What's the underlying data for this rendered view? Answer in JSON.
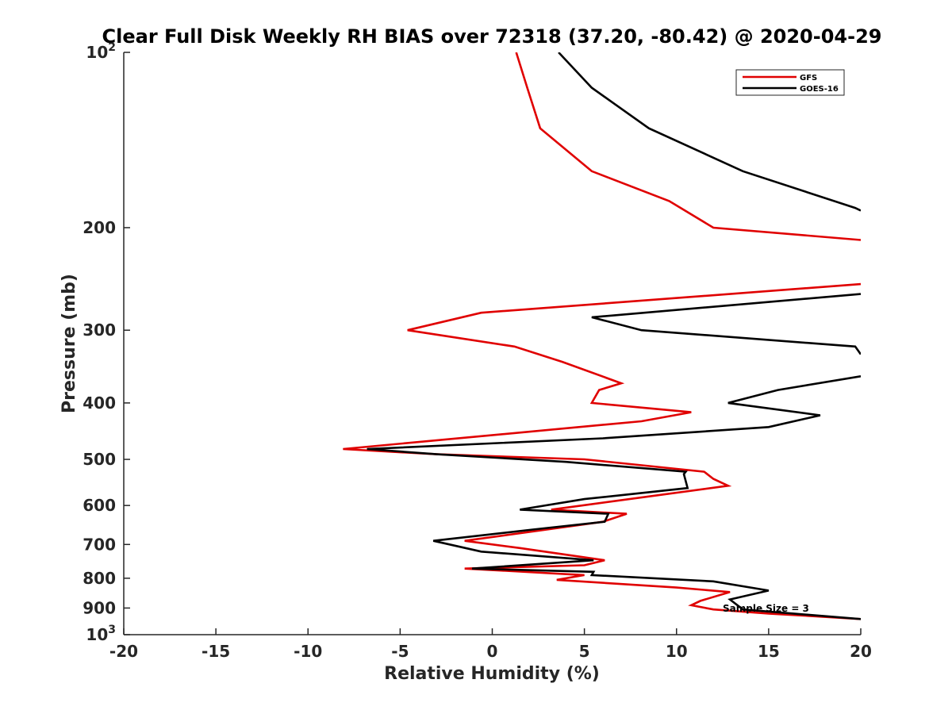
{
  "chart_data": {
    "type": "line",
    "title": "Clear Full Disk Weekly RH BIAS over 72318 (37.20, -80.42) @ 2020-04-29",
    "xlabel": "Relative Humidity (%)",
    "ylabel": "Pressure (mb)",
    "xlim": [
      -20,
      20
    ],
    "ylim": [
      100,
      1000
    ],
    "y_scale": "log",
    "y_reversed": true,
    "grid": false,
    "legend_position": "top-right",
    "x_ticks": [
      -20,
      -15,
      -10,
      -5,
      0,
      5,
      10,
      15,
      20
    ],
    "y_ticks": [
      {
        "value": 100,
        "base": "10",
        "exp": "2"
      },
      {
        "value": 200,
        "label": "200"
      },
      {
        "value": 300,
        "label": "300"
      },
      {
        "value": 400,
        "label": "400"
      },
      {
        "value": 500,
        "label": "500"
      },
      {
        "value": 600,
        "label": "600"
      },
      {
        "value": 700,
        "label": "700"
      },
      {
        "value": 800,
        "label": "800"
      },
      {
        "value": 900,
        "label": "900"
      },
      {
        "value": 1000,
        "base": "10",
        "exp": "3"
      }
    ],
    "annotation": "Sample Size = 3",
    "series": [
      {
        "name": "GFS",
        "color": "#e00000",
        "points": [
          [
            1.3,
            100
          ],
          [
            1.9,
            115
          ],
          [
            2.6,
            135
          ],
          [
            5.4,
            160
          ],
          [
            9.6,
            180
          ],
          [
            12.0,
            200
          ],
          [
            20.0,
            210
          ],
          [
            null,
            null
          ],
          [
            20.0,
            250
          ],
          [
            -0.6,
            280
          ],
          [
            -4.6,
            300
          ],
          [
            1.2,
            320
          ],
          [
            3.8,
            340
          ],
          [
            7.0,
            370
          ],
          [
            5.8,
            380
          ],
          [
            5.4,
            400
          ],
          [
            10.8,
            415
          ],
          [
            8.1,
            430
          ],
          [
            -8.1,
            480
          ],
          [
            -3.0,
            490
          ],
          [
            5.0,
            500
          ],
          [
            11.5,
            525
          ],
          [
            12.0,
            540
          ],
          [
            12.8,
            555
          ],
          [
            3.2,
            610
          ],
          [
            7.3,
            620
          ],
          [
            6.0,
            640
          ],
          [
            -1.5,
            690
          ],
          [
            1.5,
            710
          ],
          [
            6.1,
            745
          ],
          [
            5.0,
            760
          ],
          [
            -1.5,
            770
          ],
          [
            5.0,
            790
          ],
          [
            3.5,
            805
          ],
          [
            10.0,
            830
          ],
          [
            12.9,
            845
          ],
          [
            11.3,
            875
          ],
          [
            10.8,
            890
          ],
          [
            12.0,
            905
          ],
          [
            15.0,
            920
          ],
          [
            20.0,
            940
          ]
        ]
      },
      {
        "name": "GOES-16",
        "color": "#000000",
        "points": [
          [
            3.6,
            100
          ],
          [
            5.4,
            115
          ],
          [
            8.5,
            135
          ],
          [
            13.6,
            160
          ],
          [
            19.7,
            185
          ],
          [
            20.0,
            187
          ],
          [
            null,
            null
          ],
          [
            20.0,
            260
          ],
          [
            5.4,
            285
          ],
          [
            8.1,
            300
          ],
          [
            19.7,
            320
          ],
          [
            20.0,
            330
          ],
          [
            null,
            null
          ],
          [
            20.0,
            360
          ],
          [
            15.5,
            380
          ],
          [
            12.8,
            400
          ],
          [
            17.8,
            420
          ],
          [
            15.0,
            440
          ],
          [
            6.0,
            460
          ],
          [
            -6.8,
            480
          ],
          [
            -3.0,
            490
          ],
          [
            4.0,
            505
          ],
          [
            10.5,
            525
          ],
          [
            10.4,
            530
          ],
          [
            10.6,
            560
          ],
          [
            5.0,
            585
          ],
          [
            1.5,
            610
          ],
          [
            6.3,
            620
          ],
          [
            6.1,
            640
          ],
          [
            2.2,
            660
          ],
          [
            -3.2,
            690
          ],
          [
            -0.6,
            720
          ],
          [
            5.5,
            745
          ],
          [
            -1.1,
            770
          ],
          [
            5.5,
            780
          ],
          [
            5.4,
            790
          ],
          [
            12.0,
            810
          ],
          [
            15.0,
            840
          ],
          [
            12.9,
            870
          ],
          [
            13.6,
            905
          ],
          [
            20.0,
            940
          ]
        ]
      }
    ]
  }
}
